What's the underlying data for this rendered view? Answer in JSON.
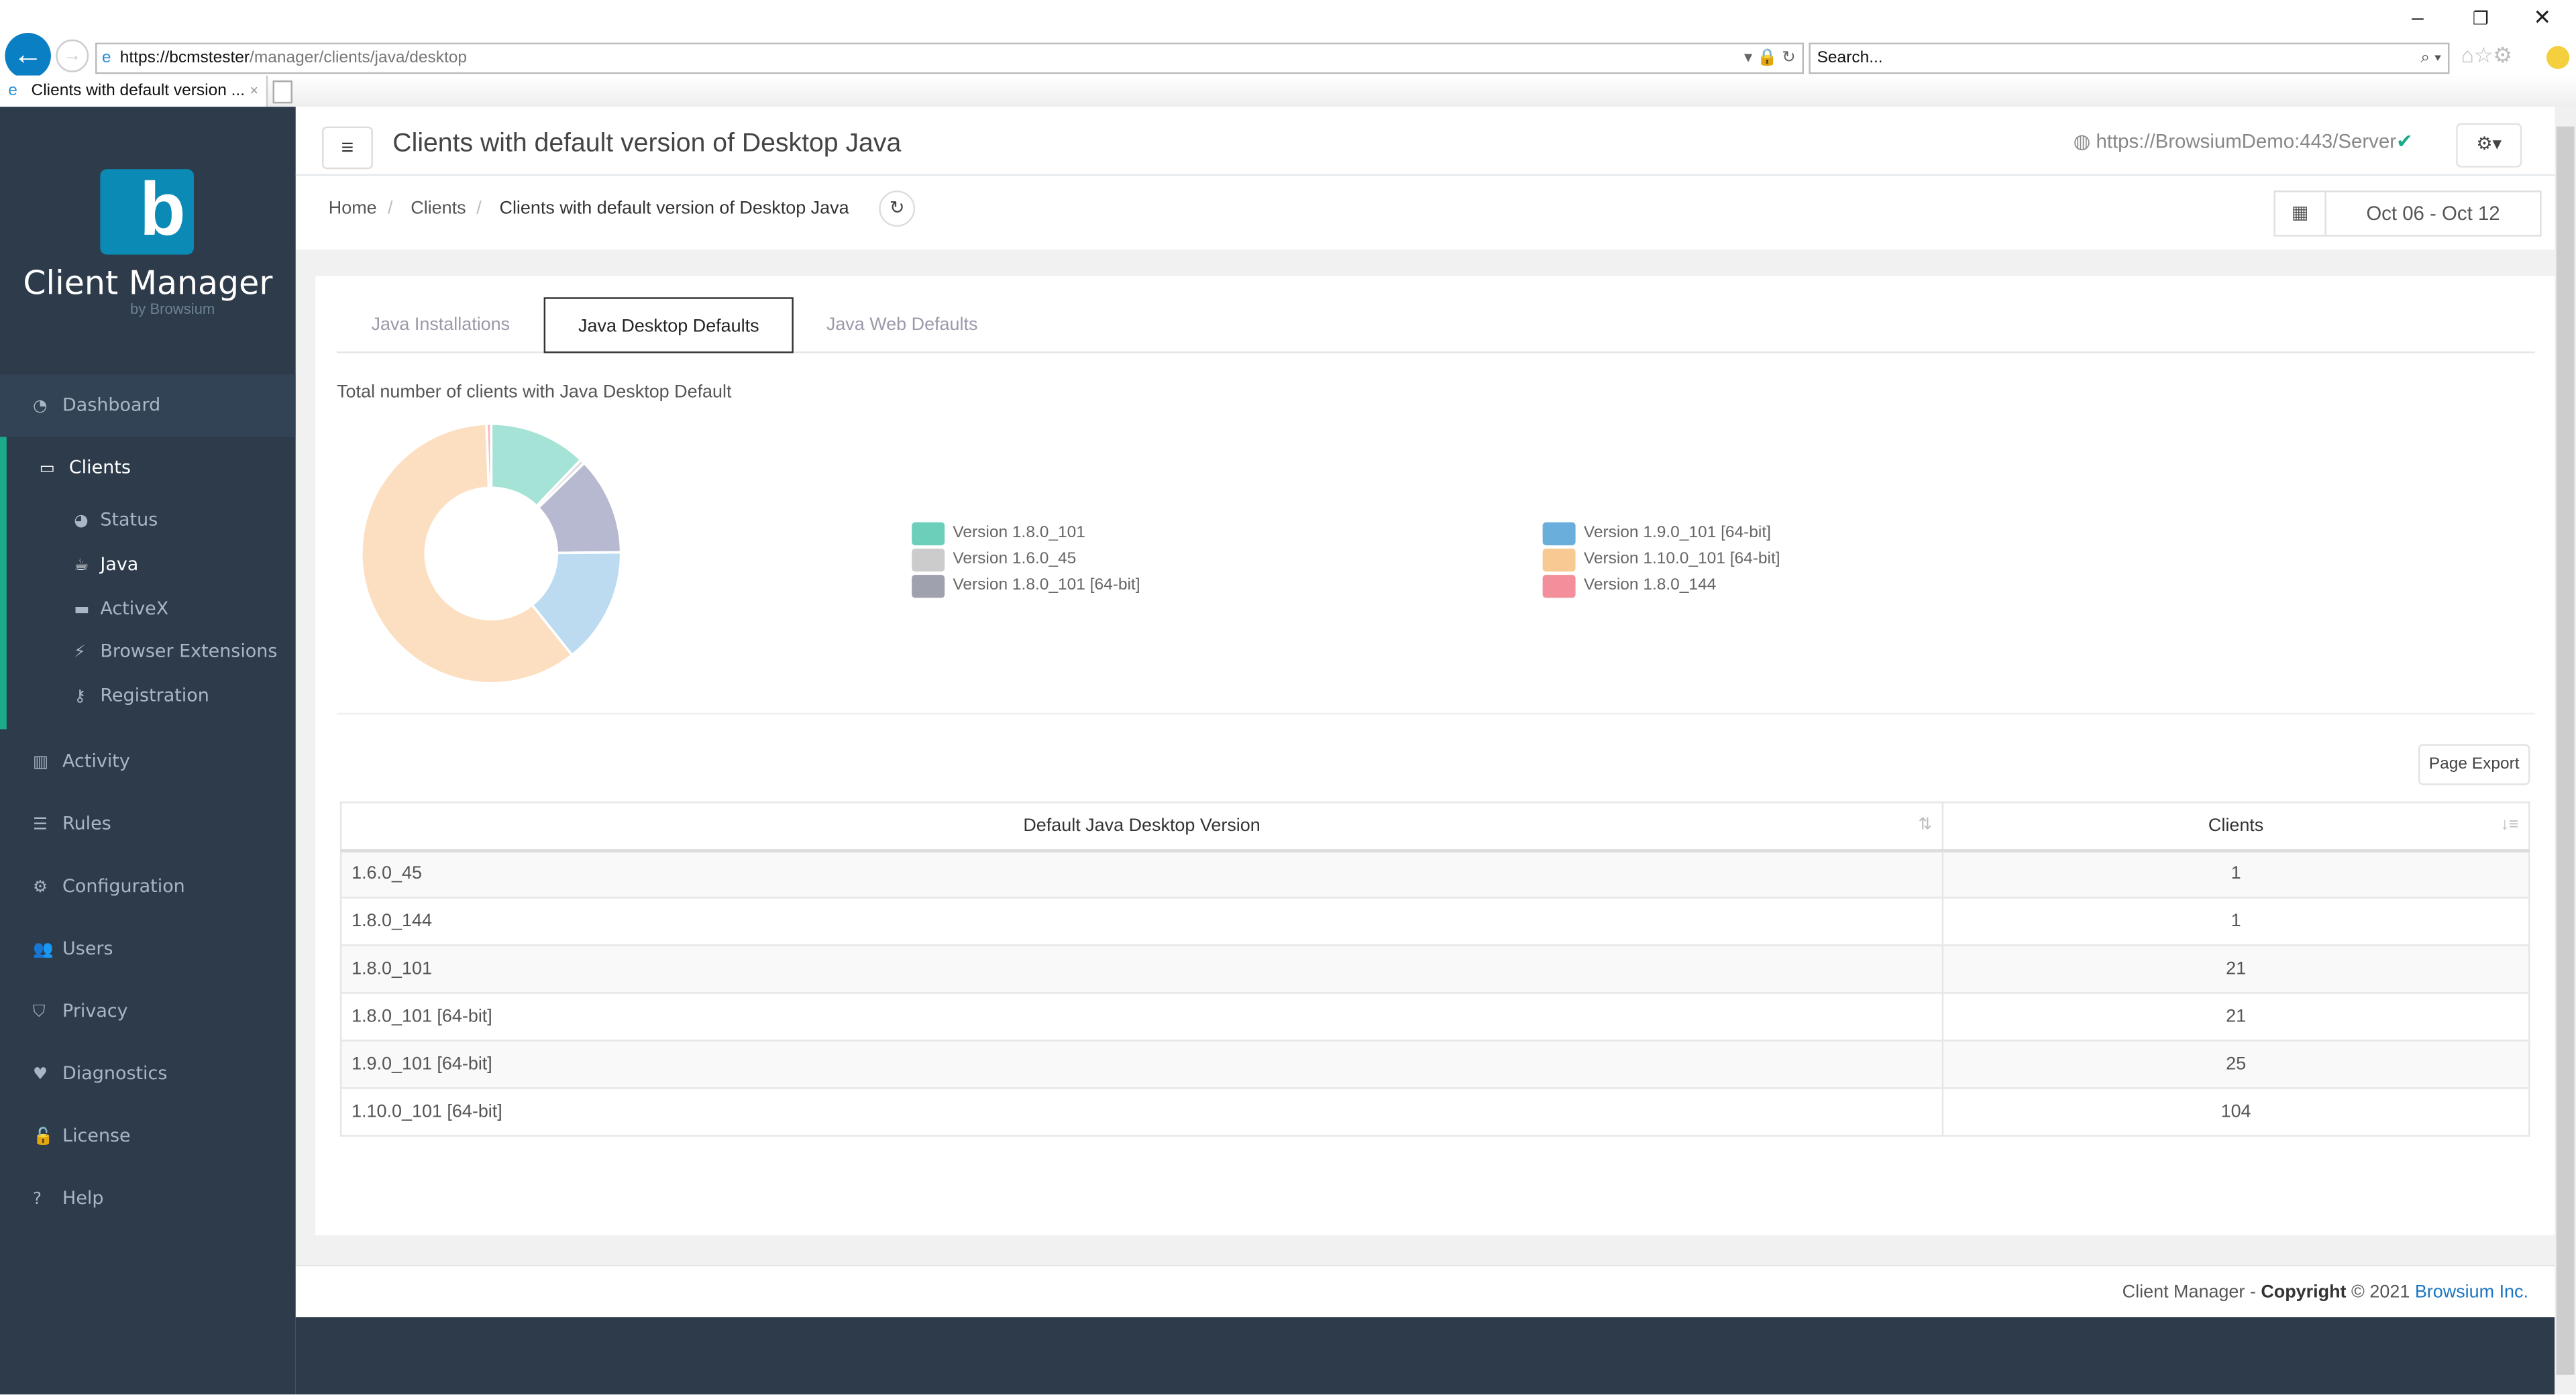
{
  "browser": {
    "url_host": "https://bcmstester",
    "url_path": "/manager/clients/java/desktop",
    "search_placeholder": "Search...",
    "tab_title": "Clients with default version ...",
    "tab_close": "×"
  },
  "sidebar": {
    "brand": "Client Manager",
    "brand_sub": "by Browsium",
    "logo_letter": "b",
    "accent": "#1aab8a",
    "items": [
      {
        "label": "Dashboard",
        "icon": "dashboard-icon"
      },
      {
        "label": "Clients",
        "icon": "laptop-icon"
      },
      {
        "label": "Activity",
        "icon": "bar-chart-icon"
      },
      {
        "label": "Rules",
        "icon": "list-icon"
      },
      {
        "label": "Configuration",
        "icon": "gear-icon"
      },
      {
        "label": "Users",
        "icon": "users-icon"
      },
      {
        "label": "Privacy",
        "icon": "shield-icon"
      },
      {
        "label": "Diagnostics",
        "icon": "heartbeat-icon"
      },
      {
        "label": "License",
        "icon": "unlock-icon"
      },
      {
        "label": "Help",
        "icon": "question-icon"
      }
    ],
    "sub_items": [
      {
        "label": "Status",
        "icon": "pie-icon"
      },
      {
        "label": "Java",
        "icon": "coffee-icon"
      },
      {
        "label": "ActiveX",
        "icon": "archive-icon"
      },
      {
        "label": "Browser Extensions",
        "icon": "plug-icon"
      },
      {
        "label": "Registration",
        "icon": "key-icon"
      }
    ]
  },
  "header": {
    "title": "Clients with default version of Desktop Java",
    "server": "https://BrowsiumDemo:443/Server"
  },
  "breadcrumb": [
    "Home",
    "Clients",
    "Clients with default version of Desktop Java"
  ],
  "date_range": "Oct 06 - Oct 12",
  "tabs": [
    "Java Installations",
    "Java Desktop Defaults",
    "Java Web Defaults"
  ],
  "chart_data": {
    "type": "pie",
    "title": "Total number of clients with Java Desktop Default",
    "donut": true,
    "slices": [
      {
        "name": "Version 1.8.0_101",
        "value": 21,
        "color": "#a6e3d7",
        "legend_color": "#6ccfba"
      },
      {
        "name": "Version 1.6.0_45",
        "value": 1,
        "color": "#dddddd",
        "legend_color": "#cccccc"
      },
      {
        "name": "Version 1.8.0_101 [64-bit]",
        "value": 21,
        "color": "#b7b9d0",
        "legend_color": "#a0a1ae"
      },
      {
        "name": "Version 1.9.0_101 [64-bit]",
        "value": 25,
        "color": "#bcdaf0",
        "legend_color": "#6aaedb"
      },
      {
        "name": "Version 1.10.0_101 [64-bit]",
        "value": 104,
        "color": "#fcdfc0",
        "legend_color": "#f9c993"
      },
      {
        "name": "Version 1.8.0_144",
        "value": 1,
        "color": "#f5b8bf",
        "legend_color": "#f38f9a"
      }
    ],
    "legend_placement": "right"
  },
  "export_label": "Page Export",
  "table": {
    "headers": [
      "Default Java Desktop Version",
      "Clients"
    ],
    "rows": [
      [
        "1.6.0_45",
        "1"
      ],
      [
        "1.8.0_144",
        "1"
      ],
      [
        "1.8.0_101",
        "21"
      ],
      [
        "1.8.0_101 [64-bit]",
        "21"
      ],
      [
        "1.9.0_101 [64-bit]",
        "25"
      ],
      [
        "1.10.0_101 [64-bit]",
        "104"
      ]
    ]
  },
  "footer": {
    "text": "Client Manager - ",
    "copyright": "Copyright",
    "year": "© 2021 ",
    "company": "Browsium Inc."
  }
}
